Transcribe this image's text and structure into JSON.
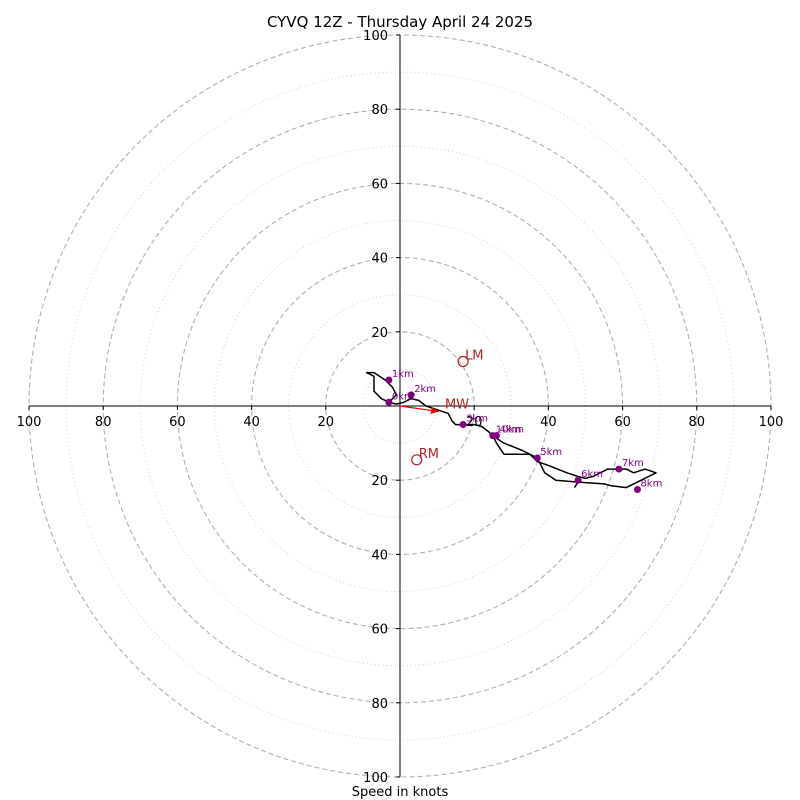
{
  "chart_data": {
    "type": "hodograph",
    "title": "CYVQ 12Z - Thursday April 24 2025",
    "xlabel": "Speed in knots",
    "xlim": [
      -100,
      100
    ],
    "ylim": [
      -100,
      100
    ],
    "rings_major": [
      20,
      40,
      60,
      80,
      100
    ],
    "rings_minor": [
      10,
      30,
      50,
      70,
      90
    ],
    "x_tick_labels": [
      "100",
      "80",
      "60",
      "40",
      "20",
      "20",
      "40",
      "60",
      "80",
      "100"
    ],
    "x_tick_values": [
      -100,
      -80,
      -60,
      -40,
      -20,
      20,
      40,
      60,
      80,
      100
    ],
    "y_tick_labels": [
      "100",
      "80",
      "60",
      "40",
      "20",
      "20",
      "40",
      "60",
      "80",
      "100"
    ],
    "y_tick_values": [
      100,
      80,
      60,
      40,
      20,
      -20,
      -40,
      -60,
      -80,
      -100
    ],
    "grid": true,
    "colors": {
      "profile": "#000000",
      "height_marker": "#800080",
      "motion": "#b22222",
      "mean_wind_arrow": "#ff0000",
      "grid": "#b0b0b0"
    },
    "profile": [
      [
        -3,
        1
      ],
      [
        -1,
        3
      ],
      [
        -2,
        5
      ],
      [
        -4,
        7
      ],
      [
        -7,
        9
      ],
      [
        -9,
        9
      ],
      [
        -7,
        8
      ],
      [
        -7,
        4
      ],
      [
        -5,
        2
      ],
      [
        -3,
        1
      ],
      [
        -1,
        0.5
      ],
      [
        1,
        1
      ],
      [
        3,
        2
      ],
      [
        5,
        1.5
      ],
      [
        7,
        0
      ],
      [
        10,
        -1
      ],
      [
        13,
        -2
      ],
      [
        14,
        -4
      ],
      [
        15,
        -5
      ],
      [
        17,
        -5
      ],
      [
        20,
        -5
      ],
      [
        22,
        -5.5
      ],
      [
        24,
        -7
      ],
      [
        25,
        -8
      ],
      [
        26,
        -10
      ],
      [
        28,
        -13
      ],
      [
        35,
        -13
      ],
      [
        37,
        -15
      ],
      [
        40,
        -16
      ],
      [
        45,
        -18
      ],
      [
        48,
        -19
      ],
      [
        50,
        -19.5
      ],
      [
        52,
        -19
      ],
      [
        54,
        -18
      ],
      [
        56,
        -17
      ],
      [
        58,
        -17
      ],
      [
        59,
        -17
      ],
      [
        61,
        -17
      ],
      [
        63,
        -18
      ],
      [
        66,
        -17
      ],
      [
        69,
        -18
      ],
      [
        67,
        -19
      ],
      [
        61,
        -22
      ],
      [
        57,
        -21.5
      ],
      [
        55,
        -21
      ],
      [
        48,
        -20.5
      ],
      [
        42,
        -20
      ],
      [
        39,
        -18
      ],
      [
        37,
        -14
      ],
      [
        33,
        -12
      ],
      [
        28,
        -10
      ],
      [
        25,
        -8
      ],
      [
        24,
        -7
      ]
    ],
    "extra_segment": [
      [
        48,
        -20.5
      ],
      [
        47,
        -22
      ]
    ],
    "height_markers": [
      {
        "label": "0km",
        "u": -3,
        "v": 1
      },
      {
        "label": "1km",
        "u": -3,
        "v": 7
      },
      {
        "label": "2km",
        "u": 3,
        "v": 3
      },
      {
        "label": "3km",
        "u": 17,
        "v": -5
      },
      {
        "label": "4km",
        "u": 26,
        "v": -8
      },
      {
        "label": "5km",
        "u": 37,
        "v": -14
      },
      {
        "label": "6km",
        "u": 48,
        "v": -20
      },
      {
        "label": "7km",
        "u": 59,
        "v": -17
      },
      {
        "label": "8km",
        "u": 64,
        "v": -22.5
      },
      {
        "label": "10km",
        "u": 25,
        "v": -8
      }
    ],
    "storm_motion": [
      {
        "label": "RM",
        "u": 4.5,
        "v": -14.5
      },
      {
        "label": "LM",
        "u": 17,
        "v": 12
      }
    ],
    "mean_wind": {
      "label": "MW",
      "u": 10.5,
      "v": -1.5
    }
  }
}
